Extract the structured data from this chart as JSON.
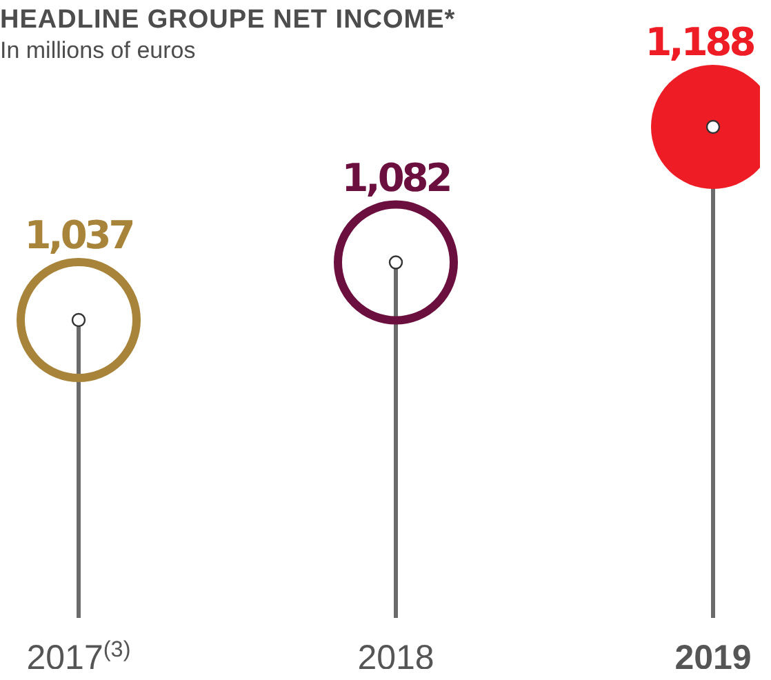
{
  "chart_data": {
    "type": "lollipop",
    "title": "HEADLINE GROUPE NET INCOME*",
    "subtitle": "In millions of euros",
    "categories": [
      "2017$^{(3)}$",
      "2018",
      "2019"
    ],
    "values": [
      1037,
      1082,
      1188
    ],
    "value_labels": [
      "1,037",
      "1,082",
      "1,188"
    ],
    "colors": [
      "#a8843a",
      "#6b0f3f",
      "#ee1c25"
    ],
    "marker": "circle",
    "tick_labels": "x"
  }
}
